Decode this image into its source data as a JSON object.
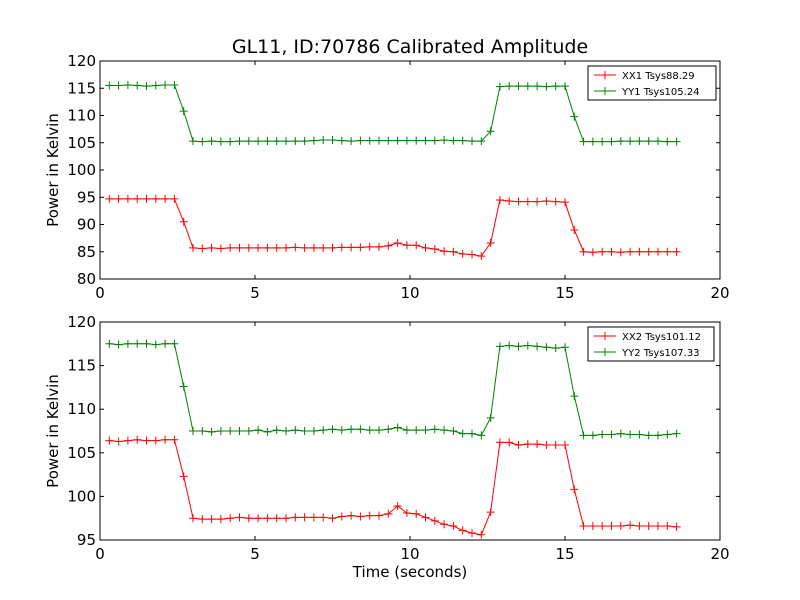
{
  "chart_data": [
    {
      "type": "line",
      "title": "GL11, ID:70786 Calibrated Amplitude",
      "xlabel": "",
      "ylabel": "Power in Kelvin",
      "xlim": [
        0,
        20
      ],
      "ylim": [
        80,
        120
      ],
      "xticks": [
        "0",
        "5",
        "10",
        "15",
        "20"
      ],
      "yticks": [
        "80",
        "85",
        "90",
        "95",
        "100",
        "105",
        "110",
        "115",
        "120"
      ],
      "legend_position": "top-right",
      "x": [
        0.3,
        0.6,
        0.9,
        1.2,
        1.5,
        1.8,
        2.1,
        2.4,
        2.7,
        3.0,
        3.3,
        3.6,
        3.9,
        4.2,
        4.5,
        4.8,
        5.1,
        5.4,
        5.7,
        6.0,
        6.3,
        6.6,
        6.9,
        7.2,
        7.5,
        7.8,
        8.1,
        8.4,
        8.7,
        9.0,
        9.3,
        9.6,
        9.9,
        10.2,
        10.5,
        10.8,
        11.1,
        11.4,
        11.7,
        12.0,
        12.3,
        12.6,
        12.9,
        13.2,
        13.5,
        13.8,
        14.1,
        14.4,
        14.7,
        15.0,
        15.3,
        15.6,
        15.9,
        16.2,
        16.5,
        16.8,
        17.1,
        17.4,
        17.7,
        18.0,
        18.3,
        18.6
      ],
      "series": [
        {
          "name": "XX1 Tsys88.29",
          "color": "#ff0000",
          "values": [
            94.7,
            94.7,
            94.7,
            94.7,
            94.7,
            94.7,
            94.7,
            94.7,
            90.5,
            85.7,
            85.6,
            85.7,
            85.6,
            85.7,
            85.7,
            85.7,
            85.7,
            85.7,
            85.7,
            85.7,
            85.8,
            85.7,
            85.7,
            85.7,
            85.7,
            85.8,
            85.8,
            85.8,
            85.9,
            85.9,
            86.1,
            86.6,
            86.2,
            86.2,
            85.7,
            85.5,
            85.1,
            85.0,
            84.6,
            84.5,
            84.2,
            86.6,
            94.5,
            94.3,
            94.2,
            94.2,
            94.2,
            94.3,
            94.2,
            94.1,
            89.0,
            85.0,
            84.9,
            85.0,
            85.0,
            84.9,
            85.0,
            85.0,
            85.0,
            85.0,
            85.0,
            85.0
          ]
        },
        {
          "name": "YY1 Tsys105.24",
          "color": "#008000",
          "values": [
            115.5,
            115.5,
            115.6,
            115.5,
            115.4,
            115.5,
            115.6,
            115.6,
            110.8,
            105.3,
            105.2,
            105.3,
            105.2,
            105.2,
            105.3,
            105.3,
            105.3,
            105.3,
            105.3,
            105.3,
            105.3,
            105.3,
            105.4,
            105.5,
            105.5,
            105.4,
            105.3,
            105.4,
            105.4,
            105.4,
            105.4,
            105.4,
            105.4,
            105.4,
            105.4,
            105.4,
            105.5,
            105.4,
            105.4,
            105.3,
            105.3,
            107.1,
            115.3,
            115.4,
            115.4,
            115.4,
            115.4,
            115.3,
            115.4,
            115.4,
            109.8,
            105.2,
            105.2,
            105.2,
            105.2,
            105.3,
            105.3,
            105.3,
            105.3,
            105.3,
            105.2,
            105.2
          ]
        }
      ]
    },
    {
      "type": "line",
      "title": "",
      "xlabel": "Time (seconds)",
      "ylabel": "Power in Kelvin",
      "xlim": [
        0,
        20
      ],
      "ylim": [
        95,
        120
      ],
      "xticks": [
        "0",
        "5",
        "10",
        "15",
        "20"
      ],
      "yticks": [
        "95",
        "100",
        "105",
        "110",
        "115",
        "120"
      ],
      "legend_position": "top-right",
      "x": [
        0.3,
        0.6,
        0.9,
        1.2,
        1.5,
        1.8,
        2.1,
        2.4,
        2.7,
        3.0,
        3.3,
        3.6,
        3.9,
        4.2,
        4.5,
        4.8,
        5.1,
        5.4,
        5.7,
        6.0,
        6.3,
        6.6,
        6.9,
        7.2,
        7.5,
        7.8,
        8.1,
        8.4,
        8.7,
        9.0,
        9.3,
        9.6,
        9.9,
        10.2,
        10.5,
        10.8,
        11.1,
        11.4,
        11.7,
        12.0,
        12.3,
        12.6,
        12.9,
        13.2,
        13.5,
        13.8,
        14.1,
        14.4,
        14.7,
        15.0,
        15.3,
        15.6,
        15.9,
        16.2,
        16.5,
        16.8,
        17.1,
        17.4,
        17.7,
        18.0,
        18.3,
        18.6
      ],
      "series": [
        {
          "name": "XX2 Tsys101.12",
          "color": "#ff0000",
          "values": [
            106.4,
            106.3,
            106.4,
            106.5,
            106.4,
            106.4,
            106.5,
            106.5,
            102.3,
            97.5,
            97.4,
            97.4,
            97.4,
            97.5,
            97.6,
            97.5,
            97.5,
            97.5,
            97.5,
            97.5,
            97.6,
            97.6,
            97.6,
            97.6,
            97.5,
            97.7,
            97.8,
            97.7,
            97.8,
            97.8,
            98.0,
            98.9,
            98.1,
            98.0,
            97.6,
            97.2,
            96.8,
            96.6,
            96.1,
            95.8,
            95.6,
            98.2,
            106.2,
            106.2,
            105.9,
            106.0,
            106.0,
            105.9,
            105.9,
            105.9,
            100.8,
            96.6,
            96.6,
            96.6,
            96.6,
            96.6,
            96.7,
            96.6,
            96.6,
            96.6,
            96.6,
            96.5
          ]
        },
        {
          "name": "YY2 Tsys107.33",
          "color": "#008000",
          "values": [
            117.5,
            117.4,
            117.5,
            117.5,
            117.5,
            117.4,
            117.5,
            117.5,
            112.6,
            107.5,
            107.5,
            107.4,
            107.5,
            107.5,
            107.5,
            107.5,
            107.6,
            107.4,
            107.6,
            107.5,
            107.6,
            107.5,
            107.5,
            107.6,
            107.7,
            107.6,
            107.7,
            107.7,
            107.6,
            107.6,
            107.7,
            107.9,
            107.6,
            107.6,
            107.6,
            107.7,
            107.6,
            107.5,
            107.2,
            107.2,
            107.0,
            109.0,
            117.2,
            117.3,
            117.2,
            117.3,
            117.2,
            117.1,
            117.0,
            117.1,
            111.5,
            107.0,
            107.0,
            107.1,
            107.1,
            107.2,
            107.1,
            107.1,
            107.0,
            107.0,
            107.1,
            107.2
          ]
        }
      ]
    }
  ]
}
